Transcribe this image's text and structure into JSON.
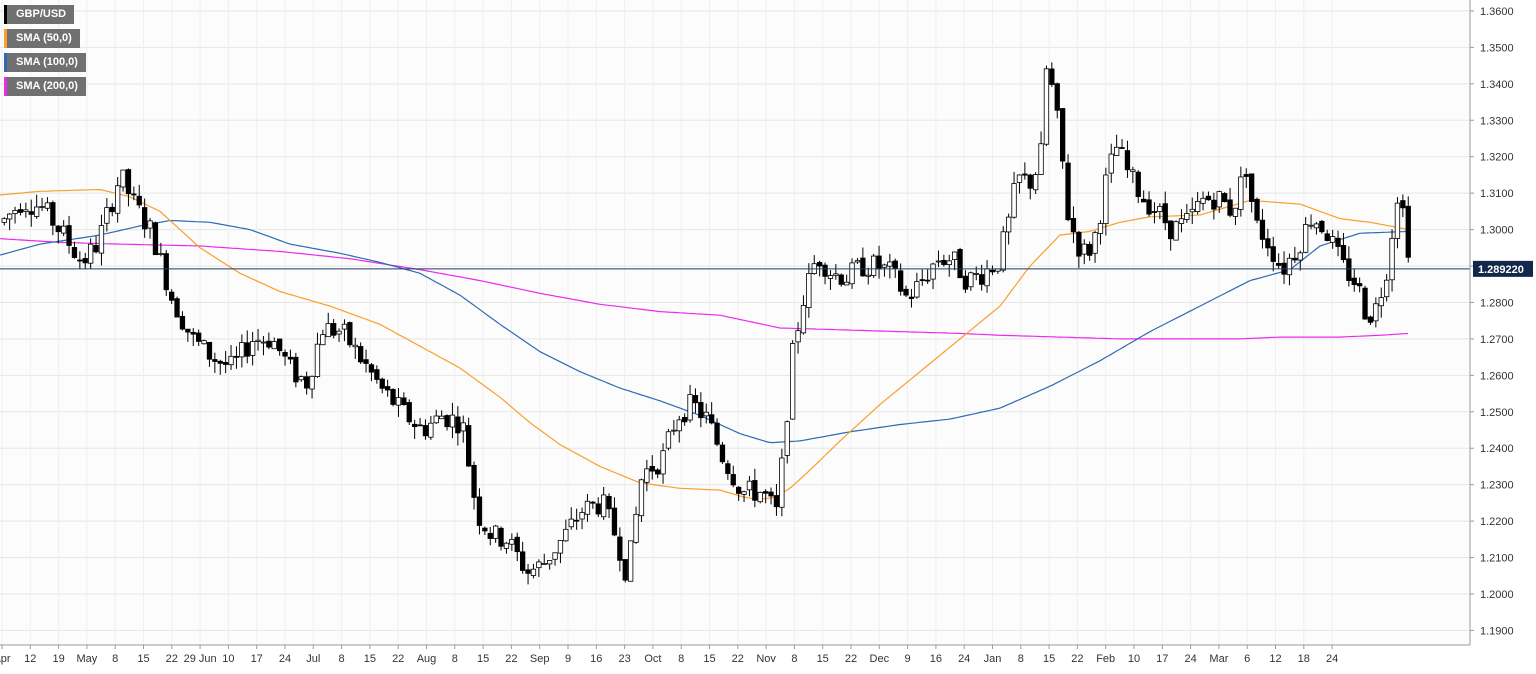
{
  "chart_data": {
    "type": "candlestick",
    "symbol": "GBP/USD",
    "timeframe": "daily",
    "last_price_label": "1.289220",
    "last_price": 1.28922,
    "ylim": [
      1.186,
      1.363
    ],
    "y_ticks": [
      "1.3600",
      "1.3500",
      "1.3400",
      "1.3300",
      "1.3200",
      "1.3100",
      "1.3000",
      "1.2900",
      "1.2800",
      "1.2700",
      "1.2600",
      "1.2500",
      "1.2400",
      "1.2300",
      "1.2200",
      "1.2100",
      "1.2000",
      "1.1900"
    ],
    "x_ticks": [
      "Apr",
      "12",
      "19",
      "May",
      "8",
      "15",
      "22",
      "29 Jun",
      "10",
      "17",
      "24",
      "Jul",
      "8",
      "15",
      "22",
      "Aug",
      "8",
      "15",
      "22",
      "Sep",
      "9",
      "16",
      "23",
      "Oct",
      "8",
      "15",
      "22",
      "Nov",
      "8",
      "15",
      "22",
      "Dec",
      "9",
      "16",
      "24",
      "Jan",
      "8",
      "15",
      "22",
      "Feb",
      "10",
      "17",
      "24",
      "Mar",
      "6",
      "12",
      "18",
      "24"
    ],
    "grid": true,
    "legend": [
      {
        "label": "GBP/USD",
        "color": "#000000"
      },
      {
        "label": "SMA (50,0)",
        "color": "#f7a02c"
      },
      {
        "label": "SMA (100,0)",
        "color": "#2f6ab3"
      },
      {
        "label": "SMA (200,0)",
        "color": "#ea2bea"
      }
    ],
    "sma50": [
      [
        0,
        1.3095
      ],
      [
        40,
        1.3105
      ],
      [
        100,
        1.311
      ],
      [
        130,
        1.309
      ],
      [
        160,
        1.305
      ],
      [
        200,
        1.295
      ],
      [
        240,
        1.288
      ],
      [
        280,
        1.283
      ],
      [
        330,
        1.279
      ],
      [
        380,
        1.274
      ],
      [
        420,
        1.268
      ],
      [
        460,
        1.262
      ],
      [
        500,
        1.254
      ],
      [
        530,
        1.247
      ],
      [
        560,
        1.241
      ],
      [
        600,
        1.235
      ],
      [
        640,
        1.2305
      ],
      [
        680,
        1.229
      ],
      [
        720,
        1.2285
      ],
      [
        745,
        1.2265
      ],
      [
        760,
        1.226
      ],
      [
        775,
        1.2265
      ],
      [
        790,
        1.229
      ],
      [
        810,
        1.234
      ],
      [
        840,
        1.242
      ],
      [
        880,
        1.252
      ],
      [
        920,
        1.261
      ],
      [
        960,
        1.27
      ],
      [
        1000,
        1.279
      ],
      [
        1030,
        1.29
      ],
      [
        1060,
        1.2985
      ],
      [
        1090,
        1.2995
      ],
      [
        1120,
        1.302
      ],
      [
        1150,
        1.3035
      ],
      [
        1200,
        1.304
      ],
      [
        1250,
        1.308
      ],
      [
        1300,
        1.307
      ],
      [
        1340,
        1.303
      ],
      [
        1370,
        1.302
      ],
      [
        1409,
        1.3
      ]
    ],
    "sma100": [
      [
        0,
        1.293
      ],
      [
        40,
        1.296
      ],
      [
        100,
        1.2985
      ],
      [
        140,
        1.301
      ],
      [
        170,
        1.3025
      ],
      [
        210,
        1.302
      ],
      [
        250,
        1.3
      ],
      [
        290,
        1.296
      ],
      [
        340,
        1.2935
      ],
      [
        380,
        1.291
      ],
      [
        420,
        1.288
      ],
      [
        460,
        1.282
      ],
      [
        500,
        1.274
      ],
      [
        540,
        1.2665
      ],
      [
        580,
        1.261
      ],
      [
        620,
        1.2565
      ],
      [
        660,
        1.253
      ],
      [
        700,
        1.249
      ],
      [
        740,
        1.244
      ],
      [
        770,
        1.2415
      ],
      [
        800,
        1.242
      ],
      [
        850,
        1.2445
      ],
      [
        900,
        1.2465
      ],
      [
        950,
        1.248
      ],
      [
        1000,
        1.251
      ],
      [
        1050,
        1.257
      ],
      [
        1100,
        1.264
      ],
      [
        1150,
        1.272
      ],
      [
        1200,
        1.279
      ],
      [
        1250,
        1.286
      ],
      [
        1290,
        1.289
      ],
      [
        1320,
        1.2955
      ],
      [
        1360,
        1.299
      ],
      [
        1409,
        1.2995
      ]
    ],
    "sma200": [
      [
        0,
        1.2975
      ],
      [
        60,
        1.2965
      ],
      [
        120,
        1.296
      ],
      [
        200,
        1.2955
      ],
      [
        280,
        1.294
      ],
      [
        350,
        1.292
      ],
      [
        420,
        1.289
      ],
      [
        480,
        1.286
      ],
      [
        540,
        1.2825
      ],
      [
        600,
        1.2795
      ],
      [
        660,
        1.2775
      ],
      [
        720,
        1.2765
      ],
      [
        780,
        1.273
      ],
      [
        840,
        1.2725
      ],
      [
        900,
        1.272
      ],
      [
        960,
        1.2715
      ],
      [
        1000,
        1.271
      ],
      [
        1060,
        1.2705
      ],
      [
        1120,
        1.27
      ],
      [
        1180,
        1.27
      ],
      [
        1240,
        1.27
      ],
      [
        1280,
        1.2705
      ],
      [
        1340,
        1.2705
      ],
      [
        1380,
        1.271
      ],
      [
        1409,
        1.2715
      ]
    ],
    "price_path": [
      [
        0,
        1.302
      ],
      [
        20,
        1.308
      ],
      [
        40,
        1.306
      ],
      [
        60,
        1.299
      ],
      [
        80,
        1.291
      ],
      [
        95,
        1.296
      ],
      [
        110,
        1.308
      ],
      [
        118,
        1.315
      ],
      [
        130,
        1.308
      ],
      [
        150,
        1.299
      ],
      [
        170,
        1.281
      ],
      [
        190,
        1.27
      ],
      [
        210,
        1.265
      ],
      [
        230,
        1.262
      ],
      [
        250,
        1.27
      ],
      [
        270,
        1.27
      ],
      [
        290,
        1.261
      ],
      [
        305,
        1.258
      ],
      [
        320,
        1.273
      ],
      [
        340,
        1.272
      ],
      [
        360,
        1.264
      ],
      [
        380,
        1.256
      ],
      [
        400,
        1.25
      ],
      [
        420,
        1.245
      ],
      [
        440,
        1.249
      ],
      [
        460,
        1.247
      ],
      [
        475,
        1.222
      ],
      [
        490,
        1.216
      ],
      [
        505,
        1.215
      ],
      [
        525,
        1.206
      ],
      [
        540,
        1.208
      ],
      [
        560,
        1.215
      ],
      [
        580,
        1.223
      ],
      [
        600,
        1.225
      ],
      [
        615,
        1.215
      ],
      [
        625,
        1.205
      ],
      [
        640,
        1.233
      ],
      [
        660,
        1.237
      ],
      [
        675,
        1.249
      ],
      [
        690,
        1.252
      ],
      [
        705,
        1.248
      ],
      [
        720,
        1.238
      ],
      [
        740,
        1.228
      ],
      [
        760,
        1.228
      ],
      [
        775,
        1.222
      ],
      [
        780,
        1.236
      ],
      [
        790,
        1.265
      ],
      [
        800,
        1.28
      ],
      [
        815,
        1.293
      ],
      [
        830,
        1.288
      ],
      [
        845,
        1.287
      ],
      [
        860,
        1.29
      ],
      [
        875,
        1.29
      ],
      [
        890,
        1.288
      ],
      [
        905,
        1.281
      ],
      [
        920,
        1.286
      ],
      [
        935,
        1.292
      ],
      [
        950,
        1.292
      ],
      [
        965,
        1.286
      ],
      [
        980,
        1.288
      ],
      [
        995,
        1.291
      ],
      [
        1005,
        1.3
      ],
      [
        1015,
        1.314
      ],
      [
        1030,
        1.313
      ],
      [
        1040,
        1.322
      ],
      [
        1045,
        1.348
      ],
      [
        1050,
        1.338
      ],
      [
        1058,
        1.325
      ],
      [
        1065,
        1.305
      ],
      [
        1075,
        1.296
      ],
      [
        1085,
        1.293
      ],
      [
        1095,
        1.3
      ],
      [
        1105,
        1.315
      ],
      [
        1115,
        1.323
      ],
      [
        1125,
        1.316
      ],
      [
        1140,
        1.309
      ],
      [
        1155,
        1.305
      ],
      [
        1170,
        1.3
      ],
      [
        1185,
        1.302
      ],
      [
        1200,
        1.308
      ],
      [
        1215,
        1.309
      ],
      [
        1230,
        1.305
      ],
      [
        1245,
        1.318
      ],
      [
        1252,
        1.302
      ],
      [
        1265,
        1.297
      ],
      [
        1280,
        1.289
      ],
      [
        1295,
        1.295
      ],
      [
        1310,
        1.304
      ],
      [
        1325,
        1.299
      ],
      [
        1340,
        1.29
      ],
      [
        1355,
        1.285
      ],
      [
        1365,
        1.276
      ],
      [
        1375,
        1.279
      ],
      [
        1385,
        1.29
      ],
      [
        1395,
        1.31
      ],
      [
        1402,
        1.304
      ],
      [
        1409,
        1.2892
      ]
    ]
  }
}
